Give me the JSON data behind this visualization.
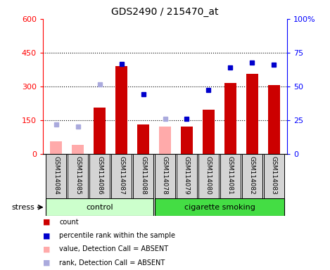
{
  "title": "GDS2490 / 215470_at",
  "samples": [
    "GSM114084",
    "GSM114085",
    "GSM114086",
    "GSM114087",
    "GSM114088",
    "GSM114078",
    "GSM114079",
    "GSM114080",
    "GSM114081",
    "GSM114082",
    "GSM114083"
  ],
  "bar_values": [
    null,
    null,
    205,
    390,
    130,
    null,
    120,
    195,
    315,
    355,
    305
  ],
  "bar_absent_values": [
    55,
    40,
    null,
    null,
    null,
    120,
    null,
    null,
    null,
    null,
    null
  ],
  "dot_rank_present": [
    null,
    null,
    null,
    400,
    265,
    null,
    155,
    285,
    385,
    405,
    395
  ],
  "dot_rank_absent": [
    130,
    122,
    308,
    null,
    null,
    155,
    null,
    null,
    null,
    null,
    null
  ],
  "bar_color": "#cc0000",
  "bar_absent_color": "#ffaaaa",
  "dot_present_color": "#0000cc",
  "dot_absent_color": "#aaaadd",
  "ylim_left": [
    0,
    600
  ],
  "ylim_right": [
    0,
    100
  ],
  "yticks_left": [
    0,
    150,
    300,
    450,
    600
  ],
  "ytick_labels_left": [
    "0",
    "150",
    "300",
    "450",
    "600"
  ],
  "yticks_right": [
    0,
    25,
    50,
    75,
    100
  ],
  "ytick_labels_right": [
    "0",
    "25",
    "50",
    "75",
    "100%"
  ],
  "grid_values": [
    150,
    300,
    450
  ],
  "control_label": "control",
  "smoking_label": "cigarette smoking",
  "stress_label": "stress",
  "control_bg": "#ccffcc",
  "smoking_bg": "#44dd44",
  "sample_bg": "#d4d4d4",
  "legend_colors": [
    "#cc0000",
    "#0000cc",
    "#ffaaaa",
    "#aaaadd"
  ],
  "legend_texts": [
    "count",
    "percentile rank within the sample",
    "value, Detection Call = ABSENT",
    "rank, Detection Call = ABSENT"
  ]
}
